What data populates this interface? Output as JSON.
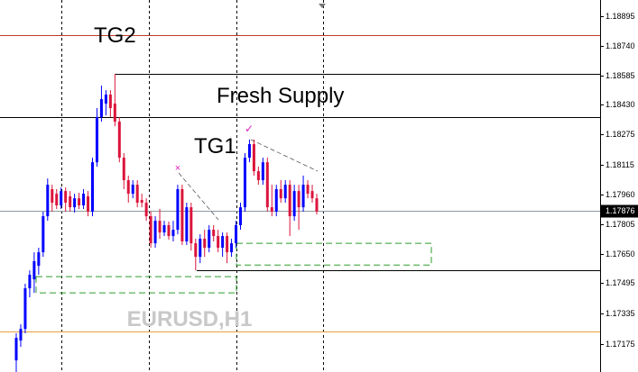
{
  "chart_data": {
    "type": "candlestick",
    "up_color": "#0000ff",
    "down_color": "#dc143c",
    "open": [
      1.1709,
      1.17194,
      1.17255,
      1.17468,
      1.17515,
      1.17586,
      1.17657,
      1.17846,
      1.17988,
      1.17964,
      1.17903,
      1.17978,
      1.1795,
      1.17893,
      1.1794,
      1.17903,
      1.1795,
      1.1787,
      1.18129,
      1.18366,
      1.18437,
      1.18484,
      1.18437,
      1.18342,
      1.18153,
      1.18035,
      1.17964,
      1.18011,
      1.17931,
      1.17917,
      1.17846,
      1.17704,
      1.17822,
      1.17761,
      1.17799,
      1.17742,
      1.17775,
      1.17988,
      1.17714,
      1.17893,
      1.17704,
      1.17633,
      1.17728,
      1.17681,
      1.17775,
      1.17742,
      1.17681,
      1.17742,
      1.17657,
      1.17704,
      1.17799,
      1.17893,
      1.18153,
      1.18224,
      1.18082,
      1.18035,
      1.18129,
      1.17893,
      1.1787,
      1.17988,
      1.1794,
      1.18011,
      1.17846,
      1.17978,
      1.17893,
      1.18011,
      1.17978,
      1.1794
    ],
    "high": [
      1.17232,
      1.17279,
      1.17492,
      1.17562,
      1.17657,
      1.17681,
      1.1787,
      1.18044,
      1.18011,
      1.17988,
      1.17997,
      1.17997,
      1.17978,
      1.17964,
      1.17969,
      1.17988,
      1.17978,
      1.18153,
      1.18413,
      1.18531,
      1.18507,
      1.18507,
      1.18593,
      1.18366,
      1.18177,
      1.18059,
      1.18035,
      1.18035,
      1.17964,
      1.1794,
      1.1787,
      1.17846,
      1.17884,
      1.17822,
      1.17818,
      1.17822,
      1.18011,
      1.18011,
      1.17917,
      1.17917,
      1.17728,
      1.17751,
      1.17775,
      1.17799,
      1.17799,
      1.17775,
      1.17761,
      1.17761,
      1.17728,
      1.17822,
      1.17917,
      1.18177,
      1.18248,
      1.18248,
      1.18106,
      1.18153,
      1.18153,
      1.18011,
      1.18011,
      1.18035,
      1.18035,
      1.18035,
      1.18011,
      1.18011,
      1.18059,
      1.18035,
      1.18011,
      1.17964
    ],
    "low": [
      1.17029,
      1.17161,
      1.17232,
      1.17421,
      1.17444,
      1.17539,
      1.17633,
      1.17822,
      1.1787,
      1.17884,
      1.17884,
      1.1787,
      1.1787,
      1.17865,
      1.17884,
      1.17884,
      1.17846,
      1.17846,
      1.18106,
      1.18342,
      1.18375,
      1.18366,
      1.18318,
      1.18129,
      1.17988,
      1.17917,
      1.1794,
      1.17893,
      1.17893,
      1.17822,
      1.17681,
      1.17681,
      1.17728,
      1.17742,
      1.17723,
      1.17714,
      1.17751,
      1.17695,
      1.17695,
      1.17666,
      1.17562,
      1.176,
      1.17633,
      1.17657,
      1.17714,
      1.17657,
      1.17633,
      1.176,
      1.17633,
      1.17681,
      1.17775,
      1.1787,
      1.18129,
      1.18059,
      1.18011,
      1.18011,
      1.1787,
      1.17846,
      1.17846,
      1.17917,
      1.17917,
      1.17742,
      1.17822,
      1.17775,
      1.1787,
      1.1794,
      1.17917,
      1.17855
    ],
    "close": [
      1.17208,
      1.17255,
      1.17468,
      1.17539,
      1.1761,
      1.17657,
      1.17846,
      1.18011,
      1.17917,
      1.17903,
      1.17978,
      1.17917,
      1.17893,
      1.1794,
      1.17903,
      1.17964,
      1.1787,
      1.18129,
      1.18366,
      1.1846,
      1.18484,
      1.18413,
      1.18342,
      1.18153,
      1.18035,
      1.17964,
      1.18011,
      1.17917,
      1.17917,
      1.17846,
      1.17704,
      1.17822,
      1.17761,
      1.17799,
      1.17742,
      1.17775,
      1.17988,
      1.17714,
      1.17893,
      1.17704,
      1.17633,
      1.17728,
      1.17681,
      1.17775,
      1.17742,
      1.17681,
      1.17742,
      1.17657,
      1.17704,
      1.17799,
      1.17893,
      1.18153,
      1.18224,
      1.18082,
      1.18035,
      1.18129,
      1.17893,
      1.1787,
      1.17988,
      1.1794,
      1.18011,
      1.17846,
      1.17978,
      1.17893,
      1.18011,
      1.17964,
      1.1794,
      1.1787
    ],
    "ylim": [
      1.17029,
      1.1898
    ],
    "yticks": [
      1.18895,
      {
        "value": 1.1874,
        "label": "1.18740"
      },
      1.18585,
      {
        "value": 1.1843,
        "label": "1.18430"
      },
      1.18275,
      1.18115,
      {
        "value": 1.1796,
        "label": "1.17960"
      },
      1.17805,
      {
        "value": 1.1765,
        "label": "1.17650"
      },
      1.17495,
      1.17335,
      1.17175
    ],
    "current_price": 1.17876,
    "current_price_color": "#8a9aa0",
    "levels": [
      {
        "value": 1.18796,
        "color": "#c0392b"
      },
      {
        "value": 1.18593,
        "color": "#000000"
      },
      {
        "value": 1.18366,
        "color": "#000000"
      },
      {
        "value": 1.17562,
        "color": "#000000"
      },
      {
        "value": 1.17241,
        "color": "#e8a040"
      }
    ],
    "zones": [
      {
        "top": 1.17704,
        "bottom": 1.1759,
        "color": "#2e9e2e"
      },
      {
        "top": 1.17529,
        "bottom": 1.17444,
        "color": "#2e9e2e"
      }
    ],
    "annotations": [
      "TG2",
      "Fresh Supply",
      "TG1"
    ],
    "watermark": "EURUSD,H1"
  }
}
